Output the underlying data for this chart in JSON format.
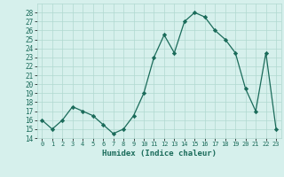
{
  "x": [
    0,
    1,
    2,
    3,
    4,
    5,
    6,
    7,
    8,
    9,
    10,
    11,
    12,
    13,
    14,
    15,
    16,
    17,
    18,
    19,
    20,
    21,
    22,
    23
  ],
  "y": [
    16,
    15,
    16,
    17.5,
    17,
    16.5,
    15.5,
    14.5,
    15,
    16.5,
    19,
    23,
    25.5,
    23.5,
    27,
    28,
    27.5,
    26,
    25,
    23.5,
    19.5,
    17,
    23.5,
    15
  ],
  "line_color": "#1a6b5a",
  "marker_color": "#1a6b5a",
  "bg_color": "#d6f0ec",
  "grid_color": "#b0d8d0",
  "xlabel": "Humidex (Indice chaleur)",
  "xlim": [
    -0.5,
    23.5
  ],
  "ylim": [
    14,
    29
  ],
  "yticks": [
    14,
    15,
    16,
    17,
    18,
    19,
    20,
    21,
    22,
    23,
    24,
    25,
    26,
    27,
    28
  ],
  "xtick_labels": [
    "0",
    "1",
    "2",
    "3",
    "4",
    "5",
    "6",
    "7",
    "8",
    "9",
    "10",
    "11",
    "12",
    "13",
    "14",
    "15",
    "16",
    "17",
    "18",
    "19",
    "20",
    "21",
    "22",
    "23"
  ],
  "title_color": "#1a6b5a",
  "font_family": "monospace"
}
